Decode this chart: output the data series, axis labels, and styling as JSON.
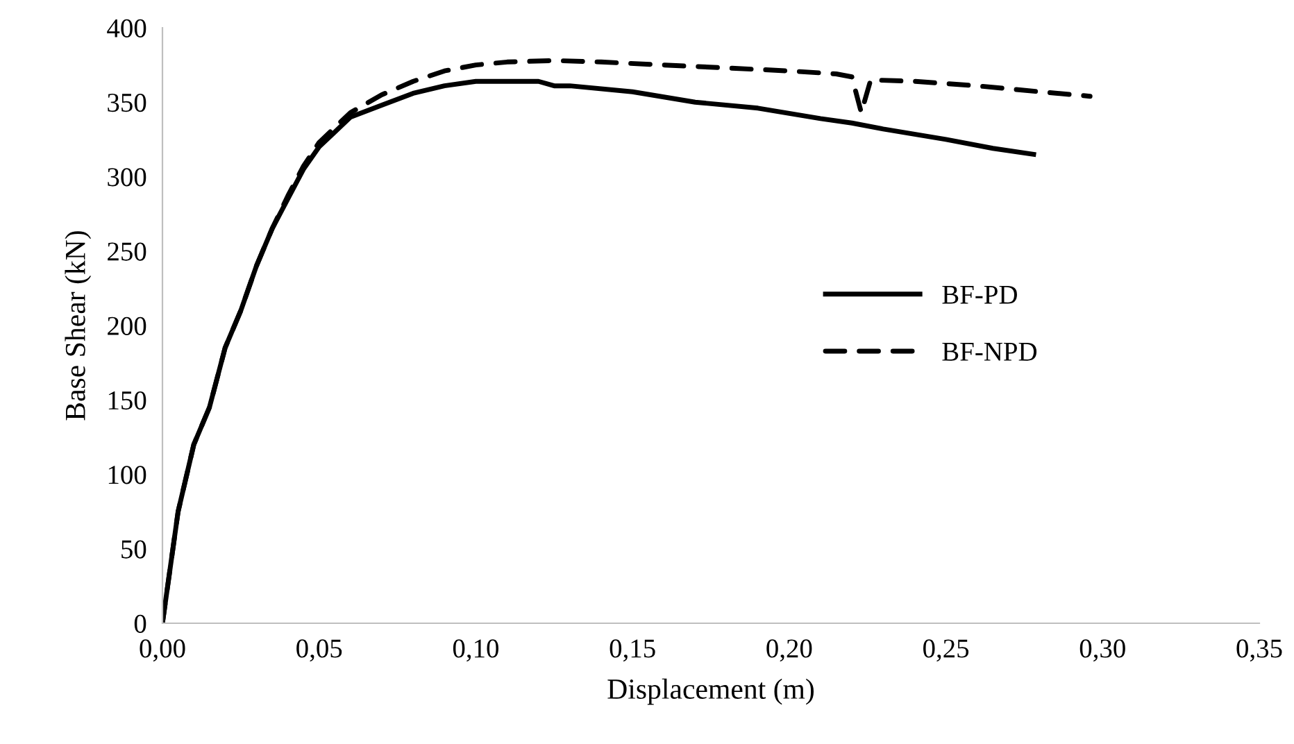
{
  "chart_data": {
    "type": "line",
    "xlabel": "Displacement (m)",
    "ylabel": "Base Shear (kN)",
    "xlim": [
      0,
      0.35
    ],
    "ylim": [
      0,
      400
    ],
    "xticks": [
      {
        "value": 0,
        "label": "0,00"
      },
      {
        "value": 0.05,
        "label": "0,05"
      },
      {
        "value": 0.1,
        "label": "0,10"
      },
      {
        "value": 0.15,
        "label": "0,15"
      },
      {
        "value": 0.2,
        "label": "0,20"
      },
      {
        "value": 0.25,
        "label": "0,25"
      },
      {
        "value": 0.3,
        "label": "0,30"
      },
      {
        "value": 0.35,
        "label": "0,35"
      }
    ],
    "yticks": [
      0,
      50,
      100,
      150,
      200,
      250,
      300,
      350,
      400
    ],
    "grid": false,
    "legend": "right",
    "marker": "none",
    "series": [
      {
        "name": "BF-PD",
        "color": "#000000",
        "line_style": "solid",
        "x": [
          0,
          0.005,
          0.01,
          0.015,
          0.02,
          0.025,
          0.03,
          0.035,
          0.04,
          0.045,
          0.05,
          0.055,
          0.06,
          0.07,
          0.08,
          0.09,
          0.1,
          0.11,
          0.12,
          0.125,
          0.13,
          0.15,
          0.17,
          0.19,
          0.21,
          0.22,
          0.23,
          0.25,
          0.265,
          0.278
        ],
        "values": [
          0,
          75,
          120,
          145,
          185,
          210,
          240,
          265,
          285,
          305,
          320,
          330,
          340,
          348,
          356,
          361,
          364,
          364,
          364,
          361,
          361,
          357,
          350,
          346,
          339,
          336,
          332,
          325,
          319,
          315
        ]
      },
      {
        "name": "BF-NPD",
        "color": "#000000",
        "line_style": "dashed",
        "x": [
          0,
          0.005,
          0.01,
          0.015,
          0.02,
          0.025,
          0.03,
          0.035,
          0.04,
          0.045,
          0.05,
          0.06,
          0.07,
          0.08,
          0.09,
          0.1,
          0.11,
          0.125,
          0.14,
          0.16,
          0.18,
          0.2,
          0.215,
          0.22,
          0.223,
          0.226,
          0.24,
          0.26,
          0.28,
          0.296
        ],
        "values": [
          0,
          75,
          120,
          145,
          185,
          210,
          240,
          265,
          287,
          307,
          323,
          343,
          355,
          364,
          371,
          375,
          377,
          378,
          377,
          375,
          373,
          371,
          369,
          367,
          343,
          365,
          364,
          361,
          357,
          354
        ]
      }
    ]
  }
}
